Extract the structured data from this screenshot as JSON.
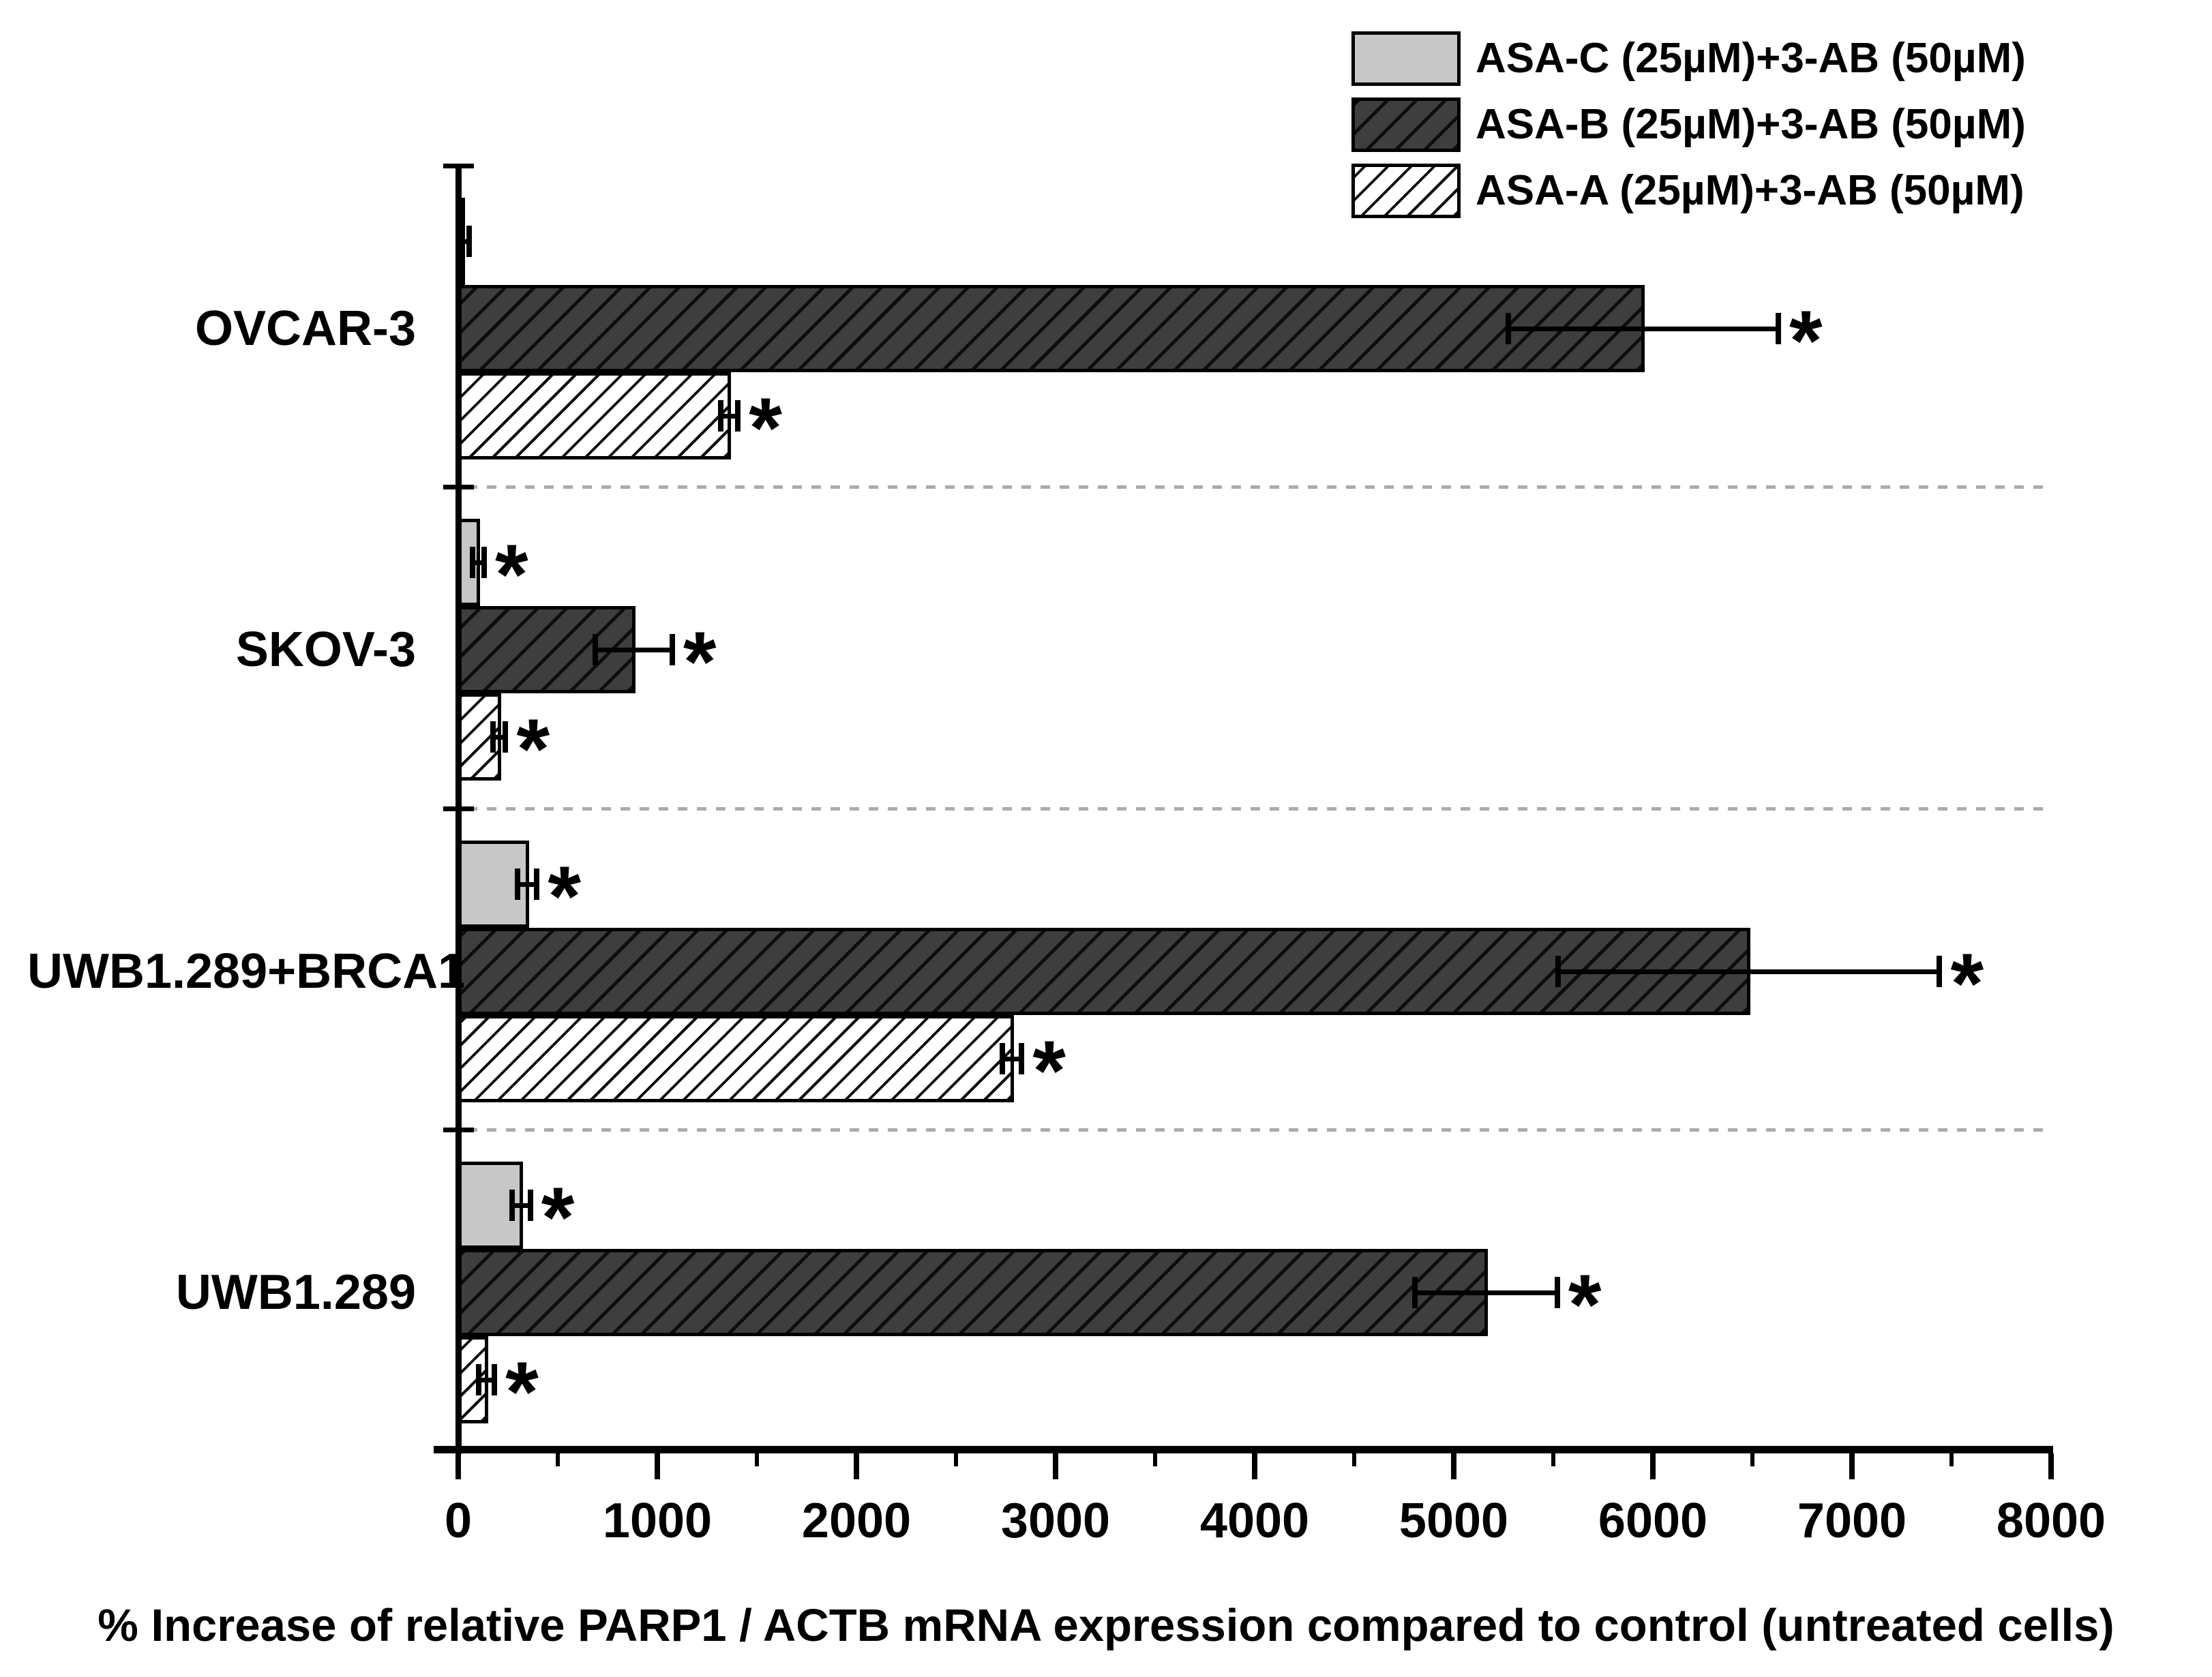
{
  "chart_data": {
    "type": "bar",
    "orientation": "horizontal",
    "title": "",
    "xlabel": "% Increase of relative PARP1 / ACTB mRNA expression compared to control (untreated cells)",
    "significance_marker": "*",
    "legend_position": "top-right",
    "grid": "dashed separators between category groups",
    "x_axis": {
      "min": 0,
      "max": 8000,
      "major_tick_step": 1000,
      "minor_tick_step": 500,
      "tick_labels": [
        "0",
        "1000",
        "2000",
        "3000",
        "4000",
        "5000",
        "6000",
        "7000",
        "8000"
      ]
    },
    "categories": [
      "OVCAR-3",
      "SKOV-3",
      "UWB1.289+BRCA1",
      "UWB1.289"
    ],
    "series": [
      {
        "name": "ASA-C (25µM)+3-AB (50µM)",
        "style": "solid",
        "values": [
          25,
          100,
          345,
          315
        ],
        "errors": [
          30,
          30,
          50,
          47
        ],
        "significant": [
          false,
          true,
          true,
          true
        ]
      },
      {
        "name": "ASA-B (25µM)+3-AB (50µM)",
        "style": "darkh",
        "values": [
          5950,
          880,
          6480,
          5160
        ],
        "errors": [
          680,
          195,
          960,
          360
        ],
        "significant": [
          true,
          true,
          true,
          true
        ]
      },
      {
        "name": "ASA-A (25µM)+3-AB (50µM)",
        "style": "whiteh",
        "values": [
          1360,
          205,
          2780,
          140
        ],
        "errors": [
          45,
          33,
          50,
          42
        ],
        "significant": [
          true,
          true,
          true,
          true
        ]
      }
    ],
    "colors": {
      "background": "#ffffff",
      "axis": "#000000",
      "hatch": "#0d0d0d",
      "bar_light": "#c7c7c7",
      "bar_dark": "#3e3e3e",
      "separator": "#ababab"
    }
  }
}
